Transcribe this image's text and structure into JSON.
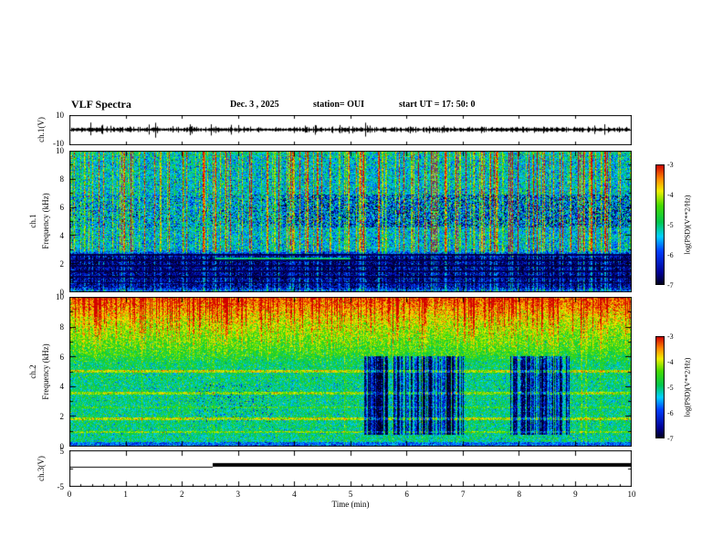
{
  "header": {
    "title": "VLF Spectra",
    "date": "Dec. 3 , 2025",
    "station": "station= OUI",
    "start_ut": "start UT =  17: 50: 0"
  },
  "axes": {
    "x": {
      "label": "Time (min)",
      "tick_labels": [
        "0",
        "1",
        "2",
        "3",
        "4",
        "5",
        "6",
        "7",
        "8",
        "9",
        "10"
      ],
      "range": [
        0,
        10
      ]
    },
    "wave_y": {
      "label": "ch.1(V)",
      "top_tick": "10",
      "bottom_tick": "-10",
      "range": [
        -10,
        10
      ]
    },
    "spec1_y": {
      "channel": "ch.1",
      "label": "Frequency (kHz)",
      "tick_labels": [
        "0",
        "2",
        "4",
        "6",
        "8",
        "10"
      ],
      "range": [
        0,
        10
      ]
    },
    "spec2_y": {
      "channel": "ch.2",
      "label": "Frequency (kHz)",
      "tick_labels": [
        "0",
        "2",
        "4",
        "6",
        "8",
        "10"
      ],
      "range": [
        0,
        10
      ]
    },
    "ch3_y": {
      "label": "ch.3(V)",
      "top_tick": "5",
      "bottom_tick": "-5",
      "range": [
        -5,
        5
      ]
    },
    "colorbar": {
      "label": "log(PSD)(V**2/Hz)",
      "tick_labels": [
        "-3",
        "-4",
        "-5",
        "-6",
        "-7"
      ],
      "range": [
        -7,
        -3
      ]
    }
  },
  "colormap": {
    "range": [
      -7,
      -3
    ],
    "stops": [
      [
        0,
        "#00001e"
      ],
      [
        0.1,
        "#000096"
      ],
      [
        0.28,
        "#0040ff"
      ],
      [
        0.4,
        "#00d0ff"
      ],
      [
        0.52,
        "#00c850"
      ],
      [
        0.66,
        "#46dc00"
      ],
      [
        0.78,
        "#f0f000"
      ],
      [
        0.88,
        "#ff8c00"
      ],
      [
        1,
        "#d20000"
      ]
    ]
  },
  "chart_data": [
    {
      "type": "line",
      "panel": "ch1_waveform",
      "ylabel": "ch.1(V)",
      "ylim": [
        -10,
        10
      ],
      "xlim": [
        0,
        10
      ],
      "xlabel": "Time (min)",
      "description": "Zero-mean broadband audio waveform: dense ~±1.5 V black noise band centered on 0 V with sporadic impulsive spikes to about ±5 V throughout the 10-minute record",
      "render": {
        "seed": 11,
        "noise_sigma": 0.8,
        "spike_prob": 0.02,
        "spike_amp_min": 1.5,
        "spike_amp_max": 3.5
      }
    },
    {
      "type": "heatmap",
      "panel": "ch1_spectrogram",
      "ylabel": "ch.1 Frequency (kHz)",
      "ylim": [
        0,
        10
      ],
      "xlim": [
        0,
        10
      ],
      "zlabel": "log(PSD)(V**2/Hz)",
      "zlim": [
        -7,
        -3
      ],
      "description": "Spectrogram of ch.1: green/cyan background near -5.3 above 3 kHz crossed by dense red/yellow vertical sferic streaks; dark navy band below ~2.8 kHz containing several black horizontal interference lines near 0.65, 1.05, 1.45, 1.85, 2.25 and 2.65 kHz; scattered dark-blue mottling near 4.6-6.9 kHz strengthening after ~4 min; faint green tone at 2.35 kHz between ~2.6 and 5 min",
      "render": {
        "seed": 23,
        "base_profile": [
          [
            0,
            -5.6
          ],
          [
            0.35,
            -6.6
          ],
          [
            2.4,
            -6.75
          ],
          [
            3.0,
            -5.35
          ],
          [
            9.3,
            -5.3
          ],
          [
            10,
            -5.1
          ]
        ],
        "noise_sigma": 0.45,
        "streak_prob": 0.28,
        "streak_min": 0.6,
        "streak_max": 2.6,
        "streak_below_fraction": 0.45,
        "dark_lines": [
          0.65,
          1.05,
          1.45,
          1.85,
          2.25,
          2.65
        ],
        "dark_line_halfwidth": 0.06,
        "green_segment": {
          "t0": 2.6,
          "t1": 5.0,
          "f": 2.35,
          "halfwidth": 0.07,
          "value": -5.0
        },
        "blue_mottle": {
          "f0": 4.6,
          "f1": 6.9,
          "t_onset": 3.8,
          "prob_late": 0.5,
          "prob_early": 0.15,
          "min": 0.5,
          "max": 1.7
        }
      }
    },
    {
      "type": "heatmap",
      "panel": "ch2_spectrogram",
      "ylabel": "ch.2 Frequency (kHz)",
      "ylim": [
        0,
        10
      ],
      "xlim": [
        0,
        10
      ],
      "zlabel": "log(PSD)(V**2/Hz)",
      "zlim": [
        -7,
        -3
      ],
      "description": "Spectrogram of ch.2: yellow/orange/red band above ~6.5 kHz (red at the very top) with red sferic streaks; green background below with yellow horizontal tones near 5.0, 3.5, 2.6, 1.85 and 0.95 kHz; two intervals of strong blue vertical striping (signal dropouts) at ~5.3-7.0 min and ~7.9-8.9 min between ~0.8 and 6 kHz; scattered dark speckles near 1.6-4.2 kHz around 2.2-3.6 min",
      "render": {
        "seed": 77,
        "base_profile": [
          [
            0,
            -5.1
          ],
          [
            1.5,
            -5.0
          ],
          [
            3,
            -5.05
          ],
          [
            5,
            -5.0
          ],
          [
            5.6,
            -4.9
          ],
          [
            6.2,
            -4.6
          ],
          [
            7.4,
            -4.3
          ],
          [
            8.6,
            -3.9
          ],
          [
            9.4,
            -3.5
          ],
          [
            10,
            -3.3
          ]
        ],
        "noise_sigma": 0.35,
        "top_streak": {
          "prob": 0.3,
          "min": 0.4,
          "max": 1.7,
          "f_start": 5.5
        },
        "full_streak": {
          "prob": 0.06,
          "min": 0.3,
          "max": 1.0
        },
        "yellow_bands": [
          {
            "f": 5.05,
            "halfwidth": 0.1,
            "boost": 0.95
          },
          {
            "f": 3.55,
            "halfwidth": 0.08,
            "boost": 0.8
          },
          {
            "f": 2.6,
            "halfwidth": 0.06,
            "boost": 0.35
          },
          {
            "f": 1.85,
            "halfwidth": 0.1,
            "boost": 0.95
          },
          {
            "f": 0.95,
            "halfwidth": 0.07,
            "boost": 0.7
          }
        ],
        "blue_patches": [
          {
            "t0": 5.25,
            "t1": 7.05,
            "f0": 0.75,
            "f1": 6.05
          },
          {
            "t0": 7.85,
            "t1": 8.9,
            "f0": 0.75,
            "f1": 6.05
          }
        ],
        "patch_col_prob": 0.65,
        "patch_min": 0.8,
        "patch_max": 2.6,
        "speckle": {
          "t0": 2.2,
          "t1": 3.6,
          "f0": 1.6,
          "f1": 4.2,
          "prob": 0.08,
          "min": 0.5,
          "max": 1.7
        }
      }
    },
    {
      "type": "line",
      "panel": "ch3_trace",
      "ylabel": "ch.3(V)",
      "ylim": [
        -5,
        5
      ],
      "xlim": [
        0,
        10
      ],
      "description": "Status trace: thin flat line near +0.3 V from 0 to ~2.5 min, then a thick flat black line near +0.8 V from ~2.5 to 10 min",
      "render": {
        "step_time": 2.55,
        "low": 0.3,
        "high": 0.8
      }
    }
  ]
}
